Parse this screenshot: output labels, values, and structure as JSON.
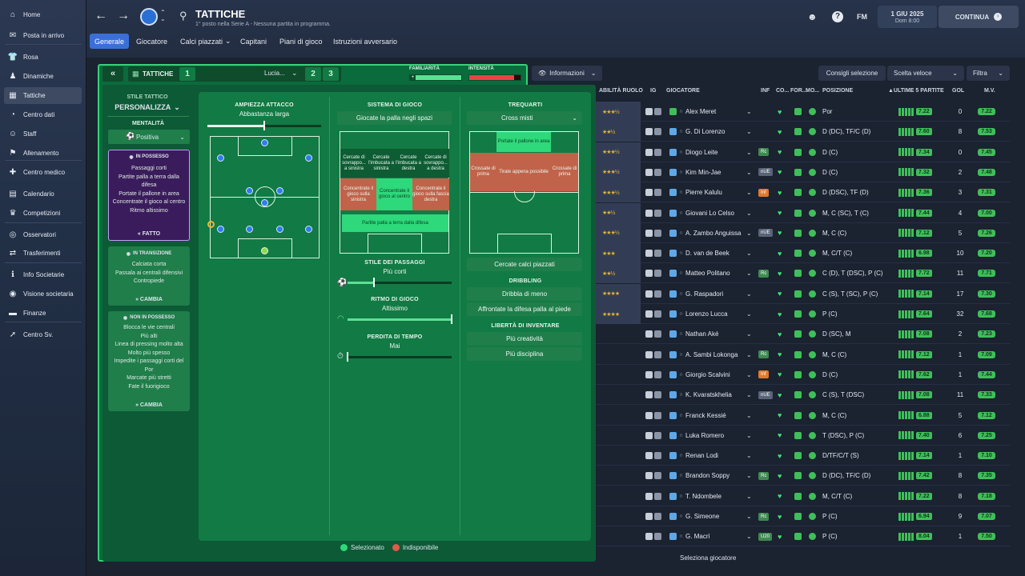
{
  "sidebar": {
    "items": [
      {
        "label": "Home",
        "icon": "home-icon",
        "glyph": "⌂"
      },
      {
        "label": "Posta in arrivo",
        "icon": "inbox-icon",
        "glyph": "✉"
      },
      {
        "label": "Rosa",
        "icon": "shirt-icon",
        "glyph": "👕"
      },
      {
        "label": "Dinamiche",
        "icon": "dynamics-icon",
        "glyph": "♟"
      },
      {
        "label": "Tattiche",
        "icon": "tactics-icon",
        "glyph": "▦"
      },
      {
        "label": "Centro dati",
        "icon": "data-icon",
        "glyph": "◔"
      },
      {
        "label": "Staff",
        "icon": "staff-icon",
        "glyph": "☺"
      },
      {
        "label": "Allenamento",
        "icon": "training-icon",
        "glyph": "⚑"
      },
      {
        "label": "Centro medico",
        "icon": "medical-icon",
        "glyph": "✚"
      },
      {
        "label": "Calendario",
        "icon": "calendar-icon",
        "glyph": "▤"
      },
      {
        "label": "Competizioni",
        "icon": "trophy-icon",
        "glyph": "♛"
      },
      {
        "label": "Osservatori",
        "icon": "scouting-icon",
        "glyph": "◎"
      },
      {
        "label": "Trasferimenti",
        "icon": "transfers-icon",
        "glyph": "⇄"
      },
      {
        "label": "Info Societarie",
        "icon": "club-info-icon",
        "glyph": "ℹ"
      },
      {
        "label": "Visione societaria",
        "icon": "vision-icon",
        "glyph": "◉"
      },
      {
        "label": "Finanze",
        "icon": "finance-icon",
        "glyph": "▬"
      },
      {
        "label": "Centro Sv.",
        "icon": "dev-centre-icon",
        "glyph": "➚"
      }
    ]
  },
  "header": {
    "title": "TATTICHE",
    "subtitle": "1° posto nella Serie A - Nessuna partita in programma.",
    "date": "1 GIU 2025",
    "time": "Dom 8:00",
    "fm": "FM",
    "continue": "CONTINUA",
    "tabs": [
      "Generale",
      "Giocatore",
      "Calci piazzati",
      "Capitani",
      "Piani di gioco",
      "Istruzioni avversario"
    ]
  },
  "bar": {
    "label": "TATTICHE",
    "slot1": "1",
    "name": "Lucia...",
    "slot2": "2",
    "slot3": "3",
    "familiarity": "FAMILIARITÀ",
    "intensity": "INTENSITÀ",
    "info": "Informazioni",
    "buttons": [
      "Consigli selezione",
      "Scelta veloce",
      "Filtra"
    ]
  },
  "style": {
    "title": "STILE TATTICO",
    "value": "PERSONALIZZA",
    "mentality_label": "MENTALITÀ",
    "mentality": "Positiva",
    "in_possession": {
      "title": "IN POSSESSO",
      "lines": [
        "Passaggi corti",
        "Partite palla a terra dalla difesa",
        "Portate il pallone in area",
        "Concentrate il gioco al centro",
        "Ritmo altissimo"
      ],
      "action": "FATTO"
    },
    "transition": {
      "title": "IN TRANSIZIONE",
      "lines": [
        "Calciata corta",
        "Passala ai centrali difensivi",
        "Contropiede"
      ],
      "action": "CAMBIA"
    },
    "out_possession": {
      "title": "NON IN POSSESSO",
      "lines": [
        "Blocca le vie centrali",
        "Più alti",
        "Linea di pressing molto alta",
        "Molto più spesso",
        "Impedite i passaggi corti del Por",
        "Marcate più stretti",
        "Fate il fuorigioco"
      ],
      "action": "CAMBIA"
    }
  },
  "attack": {
    "width_title": "AMPIEZZA ATTACCO",
    "width_value": "Abbastanza larga",
    "width_level": 0.5
  },
  "system": {
    "title": "SISTEMA DI GIOCO",
    "value": "Giocate la palla negli spazi",
    "zones": [
      "Cercate di sovrappo... a sinistra",
      "Cercate l'imbucata a sinistra",
      "Cercate l'imbucata a destra",
      "Cercate di sovrappo... a destra",
      "Concentrate il gioco sulla sinistra",
      "Concentrate il gioco al centro",
      "Concentrate il gioco sulla fascia destra",
      "Partite palla a terra dalla difesa"
    ],
    "passing_title": "STILE DEI PASSAGGI",
    "passing_value": "Più corti",
    "passing_level": 0.25,
    "tempo_title": "RITMO DI GIOCO",
    "tempo_value": "Altissimo",
    "tempo_level": 1.0,
    "timewaste_title": "PERDITA DI TEMPO",
    "timewaste_value": "Mai",
    "timewaste_level": 0.0
  },
  "final_third": {
    "title": "TREQUARTI",
    "value": "Cross misti",
    "zones": [
      "Portate il pallone in area",
      "Crossate di prima",
      "Tirate appena possibile",
      "Crossate di prima"
    ],
    "set_pieces": "Cercate calci piazzati",
    "dribbling_title": "DRIBBLING",
    "dribbling": [
      "Dribbla di meno",
      "Affrontate la difesa palla al piede"
    ],
    "freedom_title": "LIBERTÀ DI INVENTARE",
    "freedom": [
      "Più creatività",
      "Più disciplina"
    ]
  },
  "legend": {
    "selected": "Selezionato",
    "unavailable": "Indisponibile"
  },
  "table": {
    "headers": [
      "ABILITÀ RUOLO",
      "IG",
      "GIOCATORE",
      "INF",
      "CO...",
      "FOR...",
      "MO...",
      "POSIZIONE",
      "▲ULTIME 5 PARTITE",
      "GOL",
      "M.V."
    ],
    "rows": [
      {
        "stars": "★★★½",
        "name": "Alex Meret",
        "inf": "",
        "pos": "Por",
        "avg": "7.22",
        "gol": "0",
        "mv": "7.22"
      },
      {
        "stars": "★★½",
        "name": "G. Di Lorenzo",
        "inf": "",
        "pos": "D (DC), TF/C (D)",
        "avg": "7.60",
        "gol": "8",
        "mv": "7.53"
      },
      {
        "stars": "★★★½",
        "name": "Diogo Leite",
        "inf": "Rc",
        "pos": "D (C)",
        "avg": "7.34",
        "gol": "0",
        "mv": "7.45"
      },
      {
        "stars": "★★★½",
        "name": "Kim Min-Jae",
        "inf": "nUE",
        "pos": "D (C)",
        "avg": "7.32",
        "gol": "2",
        "mv": "7.48"
      },
      {
        "stars": "★★★½",
        "name": "Pierre Kalulu",
        "inf": "Inf",
        "pos": "D (DSC), TF (D)",
        "avg": "7.36",
        "gol": "3",
        "mv": "7.31"
      },
      {
        "stars": "★★½",
        "name": "Giovani Lo Celso",
        "inf": "",
        "pos": "M, C (SC), T (C)",
        "avg": "7.44",
        "gol": "4",
        "mv": "7.00"
      },
      {
        "stars": "★★★½",
        "name": "A. Zambo Anguissa",
        "inf": "nUE",
        "pos": "M, C (C)",
        "avg": "7.12",
        "gol": "5",
        "mv": "7.26"
      },
      {
        "stars": "★★★",
        "name": "D. van de Beek",
        "inf": "",
        "pos": "M, C/T (C)",
        "avg": "6.98",
        "gol": "10",
        "mv": "7.20"
      },
      {
        "stars": "★★½",
        "name": "Matteo Politano",
        "inf": "Rc",
        "pos": "C (D), T (DSC), P (C)",
        "avg": "7.72",
        "gol": "11",
        "mv": "7.71"
      },
      {
        "stars": "★★★★",
        "name": "G. Raspadori",
        "inf": "",
        "pos": "C (S), T (SC), P (C)",
        "avg": "7.14",
        "gol": "17",
        "mv": "7.30"
      },
      {
        "stars": "★★★★",
        "name": "Lorenzo Lucca",
        "inf": "",
        "pos": "P (C)",
        "avg": "7.64",
        "gol": "32",
        "mv": "7.68"
      },
      {
        "stars": "",
        "name": "Nathan Aké",
        "inf": "",
        "pos": "D (SC), M",
        "avg": "7.08",
        "gol": "2",
        "mv": "7.23"
      },
      {
        "stars": "",
        "name": "A. Sambi Lokonga",
        "inf": "Rc",
        "pos": "M, C (C)",
        "avg": "7.12",
        "gol": "1",
        "mv": "7.09"
      },
      {
        "stars": "",
        "name": "Giorgio Scalvini",
        "inf": "Inf",
        "pos": "D (C)",
        "avg": "7.62",
        "gol": "1",
        "mv": "7.44"
      },
      {
        "stars": "",
        "name": "K. Kvaratskhelia",
        "inf": "nUE",
        "pos": "C (S), T (DSC)",
        "avg": "7.08",
        "gol": "11",
        "mv": "7.33"
      },
      {
        "stars": "",
        "name": "Franck Kessié",
        "inf": "",
        "pos": "M, C (C)",
        "avg": "6.88",
        "gol": "5",
        "mv": "7.12"
      },
      {
        "stars": "",
        "name": "Luka Romero",
        "inf": "",
        "pos": "T (DSC), P (C)",
        "avg": "7.40",
        "gol": "6",
        "mv": "7.25"
      },
      {
        "stars": "",
        "name": "Renan Lodi",
        "inf": "",
        "pos": "D/TF/C/T (S)",
        "avg": "7.14",
        "gol": "1",
        "mv": "7.10"
      },
      {
        "stars": "",
        "name": "Brandon Soppy",
        "inf": "Rc",
        "pos": "D (DC), TF/C (D)",
        "avg": "7.42",
        "gol": "8",
        "mv": "7.35"
      },
      {
        "stars": "",
        "name": "T. Ndombele",
        "inf": "",
        "pos": "M, C/T (C)",
        "avg": "7.22",
        "gol": "8",
        "mv": "7.18"
      },
      {
        "stars": "",
        "name": "G. Simeone",
        "inf": "Rc",
        "pos": "P (C)",
        "avg": "6.94",
        "gol": "9",
        "mv": "7.07"
      },
      {
        "stars": "",
        "name": "G. Macrì",
        "inf": "U20",
        "pos": "P (C)",
        "avg": "8.04",
        "gol": "1",
        "mv": "7.50"
      }
    ],
    "select_player": "Seleziona giocatore"
  }
}
